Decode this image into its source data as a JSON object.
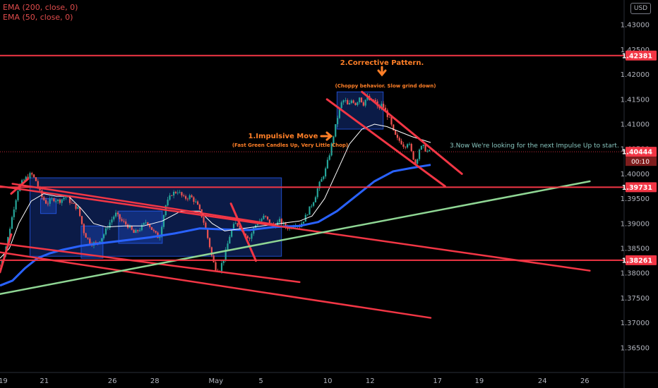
{
  "legend": {
    "ema200": "EMA (200, close, 0)",
    "ema50": "EMA (50, close, 0)"
  },
  "currency_button": "USD",
  "countdown": "00:10",
  "colors": {
    "background": "#000000",
    "bull_candle": "#26a69a",
    "bear_candle": "#ef5350",
    "line_red": "#f23645",
    "ema200": "#2962ff",
    "ema50": "#ffffff",
    "trend_green": "#8fd694",
    "box_fill": "#2962ff",
    "annotation_orange": "#ff7f27",
    "annotation_teal": "#89c7c0"
  },
  "chart_data": {
    "type": "candlestick",
    "symbol_currency": "USD",
    "y_axis": {
      "min": 1.36,
      "max": 1.435,
      "ticks": [
        "1.43000",
        "1.42500",
        "1.42000",
        "1.41500",
        "1.41000",
        "1.40500",
        "1.40000",
        "1.39500",
        "1.39000",
        "1.38500",
        "1.38000",
        "1.37500",
        "1.37000",
        "1.36500"
      ],
      "price_labels": [
        {
          "value": 1.42381,
          "text": "1.42381",
          "style": "red"
        },
        {
          "value": 1.40444,
          "text": "1.40444",
          "style": "red"
        },
        {
          "value": 1.39731,
          "text": "1.39731",
          "style": "red"
        },
        {
          "value": 1.38261,
          "text": "1.38261",
          "style": "red"
        }
      ]
    },
    "x_axis": {
      "ticks": [
        {
          "label": "19",
          "pos": 0.005
        },
        {
          "label": "21",
          "pos": 0.071
        },
        {
          "label": "26",
          "pos": 0.18
        },
        {
          "label": "28",
          "pos": 0.248
        },
        {
          "label": "May",
          "pos": 0.346
        },
        {
          "label": "5",
          "pos": 0.418
        },
        {
          "label": "10",
          "pos": 0.525
        },
        {
          "label": "12",
          "pos": 0.593
        },
        {
          "label": "17",
          "pos": 0.701
        },
        {
          "label": "19",
          "pos": 0.768
        },
        {
          "label": "24",
          "pos": 0.869
        },
        {
          "label": "26",
          "pos": 0.937
        }
      ]
    },
    "horizontal_levels": [
      1.42381,
      1.39731,
      1.38261
    ],
    "annotations": [
      {
        "text": "2.Corrective Pattern.",
        "kind": "title",
        "color": "orange"
      },
      {
        "text": "(Choppy behavior. Slow grind down)",
        "kind": "sub",
        "color": "orange"
      },
      {
        "text": "1.Impulsive Move",
        "kind": "title",
        "color": "orange"
      },
      {
        "text": "(Fast Green Candles Up, Very Little Chop)",
        "kind": "sub",
        "color": "orange"
      },
      {
        "text": "3.Now We're looking for the next Impulse Up to start.",
        "kind": "note",
        "color": "teal"
      }
    ],
    "price_path": [
      [
        0.0,
        1.3815
      ],
      [
        0.011,
        1.386
      ],
      [
        0.022,
        1.393
      ],
      [
        0.03,
        1.3975
      ],
      [
        0.04,
        1.399
      ],
      [
        0.05,
        1.4
      ],
      [
        0.058,
        1.3985
      ],
      [
        0.066,
        1.3955
      ],
      [
        0.075,
        1.394
      ],
      [
        0.085,
        1.395
      ],
      [
        0.095,
        1.3945
      ],
      [
        0.105,
        1.3955
      ],
      [
        0.115,
        1.394
      ],
      [
        0.125,
        1.393
      ],
      [
        0.135,
        1.388
      ],
      [
        0.145,
        1.386
      ],
      [
        0.155,
        1.386
      ],
      [
        0.165,
        1.3875
      ],
      [
        0.175,
        1.39
      ],
      [
        0.185,
        1.392
      ],
      [
        0.195,
        1.3905
      ],
      [
        0.205,
        1.3895
      ],
      [
        0.215,
        1.388
      ],
      [
        0.225,
        1.389
      ],
      [
        0.235,
        1.3905
      ],
      [
        0.245,
        1.3885
      ],
      [
        0.255,
        1.387
      ],
      [
        0.265,
        1.3935
      ],
      [
        0.275,
        1.396
      ],
      [
        0.285,
        1.3965
      ],
      [
        0.295,
        1.395
      ],
      [
        0.305,
        1.3955
      ],
      [
        0.315,
        1.394
      ],
      [
        0.325,
        1.391
      ],
      [
        0.335,
        1.386
      ],
      [
        0.34,
        1.383
      ],
      [
        0.345,
        1.381
      ],
      [
        0.352,
        1.3808
      ],
      [
        0.36,
        1.3835
      ],
      [
        0.368,
        1.3875
      ],
      [
        0.376,
        1.39
      ],
      [
        0.384,
        1.3895
      ],
      [
        0.392,
        1.388
      ],
      [
        0.4,
        1.387
      ],
      [
        0.408,
        1.3895
      ],
      [
        0.416,
        1.3905
      ],
      [
        0.424,
        1.3915
      ],
      [
        0.432,
        1.39
      ],
      [
        0.44,
        1.3895
      ],
      [
        0.448,
        1.3905
      ],
      [
        0.456,
        1.3895
      ],
      [
        0.464,
        1.389
      ],
      [
        0.472,
        1.39
      ],
      [
        0.48,
        1.3895
      ],
      [
        0.488,
        1.391
      ],
      [
        0.496,
        1.393
      ],
      [
        0.504,
        1.395
      ],
      [
        0.51,
        1.3975
      ],
      [
        0.516,
        1.399
      ],
      [
        0.522,
        1.401
      ],
      [
        0.528,
        1.404
      ],
      [
        0.534,
        1.4075
      ],
      [
        0.54,
        1.411
      ],
      [
        0.546,
        1.414
      ],
      [
        0.552,
        1.415
      ],
      [
        0.558,
        1.4135
      ],
      [
        0.564,
        1.415
      ],
      [
        0.57,
        1.414
      ],
      [
        0.576,
        1.4155
      ],
      [
        0.582,
        1.414
      ],
      [
        0.588,
        1.4155
      ],
      [
        0.594,
        1.4145
      ],
      [
        0.6,
        1.415
      ],
      [
        0.606,
        1.413
      ],
      [
        0.612,
        1.414
      ],
      [
        0.618,
        1.4125
      ],
      [
        0.624,
        1.411
      ],
      [
        0.63,
        1.4085
      ],
      [
        0.636,
        1.407
      ],
      [
        0.642,
        1.4065
      ],
      [
        0.648,
        1.4055
      ],
      [
        0.654,
        1.4065
      ],
      [
        0.66,
        1.404
      ],
      [
        0.666,
        1.402
      ],
      [
        0.672,
        1.405
      ],
      [
        0.678,
        1.4055
      ],
      [
        0.684,
        1.4045
      ],
      [
        0.69,
        1.4044
      ]
    ],
    "ema200_path": [
      [
        0.0,
        1.3775
      ],
      [
        0.02,
        1.3785
      ],
      [
        0.04,
        1.381
      ],
      [
        0.06,
        1.383
      ],
      [
        0.08,
        1.384
      ],
      [
        0.1,
        1.3847
      ],
      [
        0.13,
        1.3855
      ],
      [
        0.16,
        1.386
      ],
      [
        0.2,
        1.3866
      ],
      [
        0.24,
        1.3872
      ],
      [
        0.28,
        1.388
      ],
      [
        0.32,
        1.389
      ],
      [
        0.36,
        1.3888
      ],
      [
        0.4,
        1.3887
      ],
      [
        0.44,
        1.3893
      ],
      [
        0.48,
        1.3895
      ],
      [
        0.51,
        1.3903
      ],
      [
        0.54,
        1.3925
      ],
      [
        0.57,
        1.3955
      ],
      [
        0.6,
        1.3985
      ],
      [
        0.63,
        1.4005
      ],
      [
        0.66,
        1.4012
      ],
      [
        0.69,
        1.4018
      ]
    ],
    "ema50_path": [
      [
        0.0,
        1.383
      ],
      [
        0.015,
        1.385
      ],
      [
        0.03,
        1.39
      ],
      [
        0.05,
        1.3945
      ],
      [
        0.07,
        1.396
      ],
      [
        0.09,
        1.3955
      ],
      [
        0.11,
        1.3955
      ],
      [
        0.13,
        1.393
      ],
      [
        0.15,
        1.39
      ],
      [
        0.17,
        1.3893
      ],
      [
        0.2,
        1.3895
      ],
      [
        0.23,
        1.3895
      ],
      [
        0.26,
        1.3905
      ],
      [
        0.29,
        1.3925
      ],
      [
        0.32,
        1.3925
      ],
      [
        0.34,
        1.39
      ],
      [
        0.36,
        1.3885
      ],
      [
        0.39,
        1.389
      ],
      [
        0.42,
        1.3895
      ],
      [
        0.45,
        1.39
      ],
      [
        0.48,
        1.3905
      ],
      [
        0.5,
        1.3915
      ],
      [
        0.52,
        1.395
      ],
      [
        0.54,
        1.4005
      ],
      [
        0.56,
        1.406
      ],
      [
        0.58,
        1.409
      ],
      [
        0.6,
        1.41
      ],
      [
        0.62,
        1.4095
      ],
      [
        0.64,
        1.4085
      ],
      [
        0.66,
        1.4075
      ],
      [
        0.69,
        1.4063
      ]
    ],
    "trend_lines": [
      {
        "color": "red",
        "from": [
          0.0,
          1.3975
        ],
        "to": [
          0.945,
          1.3805
        ],
        "width": 2.5
      },
      {
        "color": "red",
        "from": [
          0.0,
          1.386
        ],
        "to": [
          0.48,
          1.3782
        ],
        "width": 2.5
      },
      {
        "color": "red",
        "from": [
          0.0,
          1.3842
        ],
        "to": [
          0.69,
          1.371
        ],
        "width": 2.5
      },
      {
        "color": "red",
        "from": [
          0.0,
          1.3802
        ],
        "to": [
          0.018,
          1.3878
        ],
        "width": 3
      },
      {
        "color": "red",
        "from": [
          0.018,
          1.396
        ],
        "to": [
          0.045,
          1.399
        ],
        "width": 3
      },
      {
        "color": "red",
        "from": [
          0.02,
          1.398
        ],
        "to": [
          0.44,
          1.3898
        ],
        "width": 2.5
      },
      {
        "color": "red",
        "from": [
          0.37,
          1.394
        ],
        "to": [
          0.41,
          1.3825
        ],
        "width": 3
      },
      {
        "color": "red",
        "from": [
          0.524,
          1.415
        ],
        "to": [
          0.713,
          1.3975
        ],
        "width": 3
      },
      {
        "color": "red",
        "from": [
          0.58,
          1.4165
        ],
        "to": [
          0.74,
          1.4
        ],
        "width": 3
      },
      {
        "color": "green",
        "from": [
          0.0,
          1.3758
        ],
        "to": [
          0.945,
          1.3985
        ],
        "width": 2.5
      }
    ],
    "zones": [
      {
        "from": [
          0.048,
          1.3992
        ],
        "to": [
          0.451,
          1.3834
        ]
      },
      {
        "from": [
          0.065,
          1.395
        ],
        "to": [
          0.09,
          1.392
        ]
      },
      {
        "from": [
          0.13,
          1.3895
        ],
        "to": [
          0.165,
          1.383
        ]
      },
      {
        "from": [
          0.19,
          1.3925
        ],
        "to": [
          0.26,
          1.386
        ]
      },
      {
        "from": [
          0.54,
          1.4165
        ],
        "to": [
          0.614,
          1.409
        ]
      }
    ]
  }
}
